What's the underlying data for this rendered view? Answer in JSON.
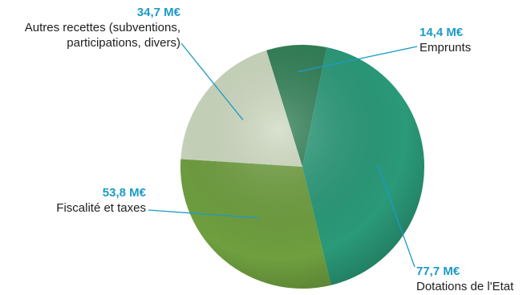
{
  "chart_data": {
    "type": "pie",
    "unit": "M€",
    "slices": [
      {
        "key": "emprunts",
        "label": "Emprunts",
        "value": 14.4,
        "value_label": "14,4 M€",
        "color": "#2f7f55"
      },
      {
        "key": "dotations",
        "label": "Dotations de l'Etat",
        "value": 77.7,
        "value_label": "77,7 M€",
        "color": "#2a9a78"
      },
      {
        "key": "fiscalite",
        "label": "Fiscalité et taxes",
        "value": 53.8,
        "value_label": "53,8 M€",
        "color": "#6f9f3f"
      },
      {
        "key": "autres",
        "label": "Autres recettes (subventions, participations, divers)",
        "value": 34.7,
        "value_label": "34,7 M€",
        "color": "#cdd9bf"
      }
    ],
    "label_lines": [
      "Autres recettes (subventions,",
      "participations, divers)"
    ]
  },
  "colors": {
    "value_text": "#1b9bc7",
    "leader_line": "#1b9bc7"
  }
}
